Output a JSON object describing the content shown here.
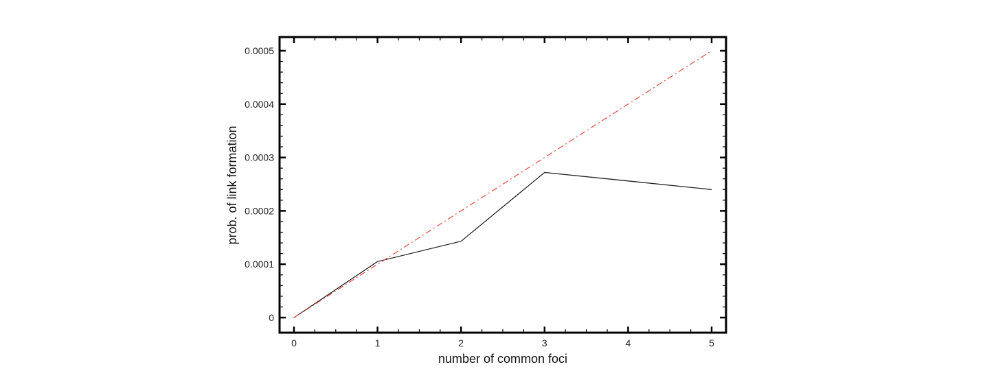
{
  "chart_data": {
    "type": "line",
    "title": "",
    "xlabel": "number of common foci",
    "ylabel": "prob. of link formation",
    "xlim": [
      0,
      5
    ],
    "ylim": [
      0,
      0.0005
    ],
    "x_ticks": [
      "0",
      "1",
      "2",
      "3",
      "4",
      "5"
    ],
    "y_ticks": [
      "0",
      "0.0001",
      "0.0002",
      "0.0003",
      "0.0004",
      "0.0005"
    ],
    "grid": false,
    "legend": "none",
    "series": [
      {
        "x": [
          0,
          1,
          2,
          3,
          4,
          5
        ],
        "values": [
          0,
          0.000105,
          0.000143,
          0.000272,
          0.000256,
          0.00024
        ],
        "color": "#222222",
        "style": "solid"
      },
      {
        "x": [
          0,
          5
        ],
        "values": [
          0,
          0.0005
        ],
        "color": "#e8483a",
        "style": "dashdot"
      }
    ]
  }
}
